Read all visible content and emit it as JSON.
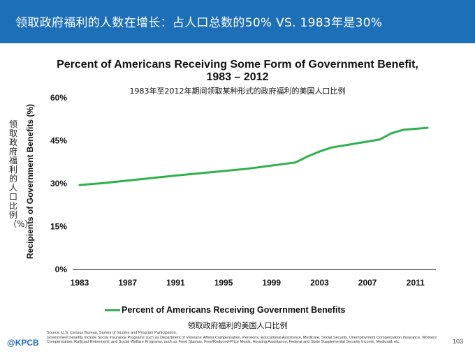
{
  "banner": {
    "title": "领取政府福利的人数在增长：占人口总数的50% VS. 1983年是30%"
  },
  "chart_data": {
    "type": "line",
    "title_line1": "Percent of Americans Receiving Some Form of Government Benefit,",
    "title_line2": "1983 – 2012",
    "subtitle": "1983年至2012年期间领取某种形式的政府福利的美国人口比例",
    "ylabel": "Recipients of Government Benefits (%)",
    "ylabel_cn": "领取政府福利的人口比例（%）",
    "xlabel": "",
    "ylim": [
      0,
      60
    ],
    "xlim": [
      1983,
      2012
    ],
    "y_ticks": [
      {
        "value": 0,
        "label": "0%"
      },
      {
        "value": 15,
        "label": "15%"
      },
      {
        "value": 30,
        "label": "30%"
      },
      {
        "value": 45,
        "label": "45%"
      },
      {
        "value": 60,
        "label": "60%"
      }
    ],
    "x_ticks": [
      {
        "value": 1983,
        "label": "1983"
      },
      {
        "value": 1987,
        "label": "1987"
      },
      {
        "value": 1991,
        "label": "1991"
      },
      {
        "value": 1995,
        "label": "1995"
      },
      {
        "value": 1999,
        "label": "1999"
      },
      {
        "value": 2003,
        "label": "2003"
      },
      {
        "value": 2007,
        "label": "2007"
      },
      {
        "value": 2011,
        "label": "2011"
      }
    ],
    "series": [
      {
        "name": "Percent of Americans Receiving Government Benefits",
        "name_cn": "领取政府福利的美国人口比例",
        "color": "#2db14a",
        "x": [
          1983,
          1985,
          1988,
          1991,
          1993,
          1995,
          1997,
          1999,
          2001,
          2002,
          2003,
          2004,
          2006,
          2008,
          2009,
          2010,
          2012
        ],
        "values": [
          29.5,
          30.2,
          31.5,
          32.8,
          33.6,
          34.4,
          35.2,
          36.3,
          37.4,
          39.5,
          41.2,
          42.6,
          44.0,
          45.4,
          47.6,
          48.8,
          49.5
        ]
      }
    ],
    "grid": false,
    "legend_position": "bottom"
  },
  "footer": {
    "logo": "@KPCB",
    "source_line1": "Source: U.S. Census Bureau, Survey of Income and Program Participation.",
    "source_line2": "Government benefits include Social Insurance Programs such as Department of Veterans' Affairs Compensation, Pensions, Educational Assistance, Medicare, Social Security, Unemployment Compensation Insurance, Workers' Compensation, Railroad Retirement; and Social Welfare Programs, such as Food Stamps, Free/Reduced-Price Meals, Housing Assistance, Federal and State Supplemental Security Income, Medicaid, etc.",
    "page_number": "103"
  }
}
